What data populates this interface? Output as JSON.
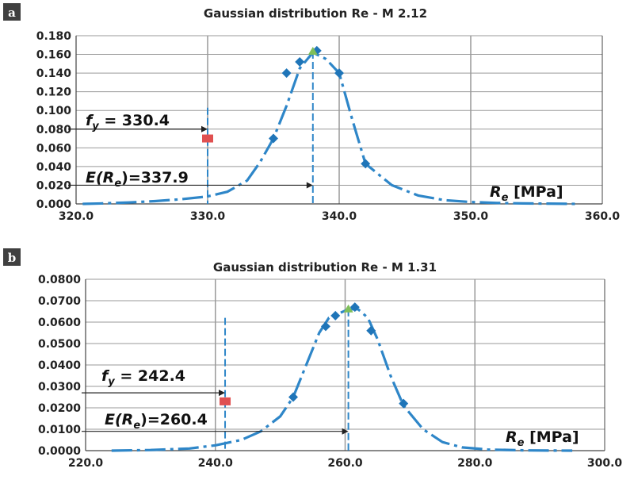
{
  "chart_data": [
    {
      "type": "line",
      "panel_label": "a",
      "title": "Gaussian distribution Re  -  M 2.12",
      "xlabel": "Re [MPa]",
      "xlabel_symbol": "R",
      "xlabel_sub": "e",
      "xlabel_unit": " [MPa]",
      "xlim": [
        320,
        360
      ],
      "ylim": [
        0,
        0.18
      ],
      "x_ticks": [
        "320.0",
        "330.0",
        "340.0",
        "350.0",
        "360.0"
      ],
      "x_tick_values": [
        320,
        330,
        340,
        350,
        360
      ],
      "y_ticks": [
        "0.000",
        "0.020",
        "0.040",
        "0.060",
        "0.080",
        "0.100",
        "0.120",
        "0.140",
        "0.160",
        "0.180"
      ],
      "y_tick_values": [
        0,
        0.02,
        0.04,
        0.06,
        0.08,
        0.1,
        0.12,
        0.14,
        0.16,
        0.18
      ],
      "vertical_gridlines": [
        330,
        340,
        350
      ],
      "curve": {
        "x": [
          320.5,
          322,
          324,
          326,
          328,
          330,
          331.5,
          333,
          334,
          335,
          336,
          337,
          338,
          339,
          340,
          341,
          342,
          344,
          346,
          348,
          350,
          352,
          354,
          358
        ],
        "y": [
          0.0,
          0.0005,
          0.0015,
          0.003,
          0.005,
          0.008,
          0.013,
          0.025,
          0.045,
          0.07,
          0.105,
          0.145,
          0.162,
          0.155,
          0.14,
          0.09,
          0.043,
          0.02,
          0.009,
          0.004,
          0.002,
          0.001,
          0.0005,
          0.0
        ]
      },
      "markers": {
        "x": [
          335,
          336,
          337,
          338.3,
          340,
          342
        ],
        "y": [
          0.07,
          0.14,
          0.152,
          0.164,
          0.14,
          0.043
        ]
      },
      "peak": {
        "x": 338,
        "y": 0.163
      },
      "fy_marker": {
        "x": 330,
        "y": 0.07
      },
      "fy_line_x": 330,
      "fy_line_top": 0.103,
      "mean_line_x": 338,
      "fy_arrow_y": 0.08,
      "mean_arrow_y": 0.02,
      "fy_annotation_prefix": "f",
      "fy_annotation_sub": "y",
      "fy_annotation_value": " = 330.4",
      "mean_annotation_prefix": "E(",
      "mean_annotation_symbol": "R",
      "mean_annotation_sub": "e",
      "mean_annotation_value": ")=337.9"
    },
    {
      "type": "line",
      "panel_label": "b",
      "title": "Gaussian distribution Re - M 1.31",
      "xlabel": "Re [MPa]",
      "xlabel_symbol": "R",
      "xlabel_sub": "e",
      "xlabel_unit": " [MPa]",
      "xlim": [
        220,
        300
      ],
      "ylim": [
        0,
        0.08
      ],
      "x_ticks": [
        "220.0",
        "240.0",
        "260.0",
        "280.0",
        "300.0"
      ],
      "x_tick_values": [
        220,
        240,
        260,
        280,
        300
      ],
      "y_ticks": [
        "0.0000",
        "0.0100",
        "0.0200",
        "0.0300",
        "0.0400",
        "0.0500",
        "0.0600",
        "0.0700",
        "0.0800"
      ],
      "y_tick_values": [
        0,
        0.01,
        0.02,
        0.03,
        0.04,
        0.05,
        0.06,
        0.07,
        0.08
      ],
      "vertical_gridlines": [
        240,
        260,
        280
      ],
      "curve": {
        "x": [
          224,
          230,
          236,
          240,
          244,
          247,
          250,
          252,
          254,
          256,
          257.5,
          259,
          260.5,
          262,
          263.5,
          265,
          267,
          269,
          272,
          275,
          278,
          282,
          288,
          295
        ],
        "y": [
          0.0,
          0.0003,
          0.001,
          0.0025,
          0.005,
          0.009,
          0.016,
          0.025,
          0.04,
          0.055,
          0.062,
          0.064,
          0.066,
          0.066,
          0.062,
          0.052,
          0.035,
          0.021,
          0.01,
          0.004,
          0.0015,
          0.0005,
          0.0001,
          0.0
        ]
      },
      "markers": {
        "x": [
          252,
          257,
          258.5,
          261.5,
          264,
          269
        ],
        "y": [
          0.025,
          0.058,
          0.063,
          0.067,
          0.056,
          0.022
        ]
      },
      "peak": {
        "x": 260.5,
        "y": 0.066
      },
      "fy_marker": {
        "x": 241.5,
        "y": 0.023
      },
      "fy_line_x": 241.5,
      "fy_line_top": 0.062,
      "mean_line_x": 260.5,
      "fy_arrow_y": 0.027,
      "mean_arrow_y": 0.009,
      "fy_annotation_prefix": "f",
      "fy_annotation_sub": "y",
      "fy_annotation_value": " =   242.4",
      "mean_annotation_prefix": "E(",
      "mean_annotation_symbol": "R",
      "mean_annotation_sub": "e",
      "mean_annotation_value": ")=260.4"
    }
  ],
  "colors": {
    "curve": "#2e86c8",
    "marker": "#1f75b8",
    "peak": "#7fbf5a",
    "fy_marker": "#e05050",
    "grid": "#999999",
    "axis": "#444444",
    "badge": "#404040"
  }
}
